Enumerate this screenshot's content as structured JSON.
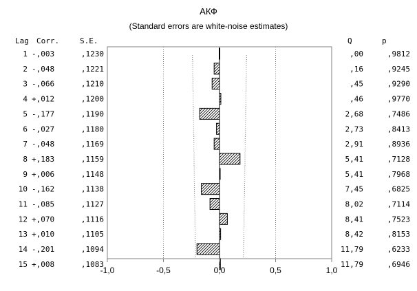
{
  "chart_data": {
    "type": "bar",
    "title": "АКФ",
    "subtitle": "(Standard errors are white-noise estimates)",
    "columns": {
      "lag": "Lag",
      "corr": "Corr.",
      "se": "S.E.",
      "q": "Q",
      "p": "p"
    },
    "rows": [
      {
        "lag": "1",
        "corr_text": "-,003",
        "se_text": ",1230",
        "q_text": ",00",
        "p_text": ",9812",
        "value": -0.003,
        "se": 0.123
      },
      {
        "lag": "2",
        "corr_text": "-,048",
        "se_text": ",1221",
        "q_text": ",16",
        "p_text": ",9245",
        "value": -0.048,
        "se": 0.1221
      },
      {
        "lag": "3",
        "corr_text": "-,066",
        "se_text": ",1210",
        "q_text": ",45",
        "p_text": ",9290",
        "value": -0.066,
        "se": 0.121
      },
      {
        "lag": "4",
        "corr_text": "+,012",
        "se_text": ",1200",
        "q_text": ",46",
        "p_text": ",9770",
        "value": 0.012,
        "se": 0.12
      },
      {
        "lag": "5",
        "corr_text": "-,177",
        "se_text": ",1190",
        "q_text": "2,68",
        "p_text": ",7486",
        "value": -0.177,
        "se": 0.119
      },
      {
        "lag": "6",
        "corr_text": "-,027",
        "se_text": ",1180",
        "q_text": "2,73",
        "p_text": ",8413",
        "value": -0.027,
        "se": 0.118
      },
      {
        "lag": "7",
        "corr_text": "-,048",
        "se_text": ",1169",
        "q_text": "2,91",
        "p_text": ",8936",
        "value": -0.048,
        "se": 0.1169
      },
      {
        "lag": "8",
        "corr_text": "+,183",
        "se_text": ",1159",
        "q_text": "5,41",
        "p_text": ",7128",
        "value": 0.183,
        "se": 0.1159
      },
      {
        "lag": "9",
        "corr_text": "+,006",
        "se_text": ",1148",
        "q_text": "5,41",
        "p_text": ",7968",
        "value": 0.006,
        "se": 0.1148
      },
      {
        "lag": "10",
        "corr_text": "-,162",
        "se_text": ",1138",
        "q_text": "7,45",
        "p_text": ",6825",
        "value": -0.162,
        "se": 0.1138
      },
      {
        "lag": "11",
        "corr_text": "-,085",
        "se_text": ",1127",
        "q_text": "8,02",
        "p_text": ",7114",
        "value": -0.085,
        "se": 0.1127
      },
      {
        "lag": "12",
        "corr_text": "+,070",
        "se_text": ",1116",
        "q_text": "8,41",
        "p_text": ",7523",
        "value": 0.07,
        "se": 0.1116
      },
      {
        "lag": "13",
        "corr_text": "+,010",
        "se_text": ",1105",
        "q_text": "8,42",
        "p_text": ",8153",
        "value": 0.01,
        "se": 0.1105
      },
      {
        "lag": "14",
        "corr_text": "-,201",
        "se_text": ",1094",
        "q_text": "11,79",
        "p_text": ",6233",
        "value": -0.201,
        "se": 0.1094
      },
      {
        "lag": "15",
        "corr_text": "+,008",
        "se_text": ",1083",
        "q_text": "11,79",
        "p_text": ",6946",
        "value": 0.008,
        "se": 0.1083
      }
    ],
    "xticks": [
      {
        "value": -1.0,
        "label": "-1,0"
      },
      {
        "value": -0.5,
        "label": "-0,5"
      },
      {
        "value": 0.0,
        "label": "0,0"
      },
      {
        "value": 0.5,
        "label": "0,5"
      },
      {
        "value": 1.0,
        "label": "1,0"
      }
    ],
    "xlim": [
      -1,
      1
    ],
    "confidence_multiplier": 1.96,
    "grid": true,
    "colors": {
      "bar_fill": "#ffffff",
      "bar_hatch": "#000000",
      "frame": "#808080",
      "grid": "#808080",
      "text": "#000000"
    }
  }
}
